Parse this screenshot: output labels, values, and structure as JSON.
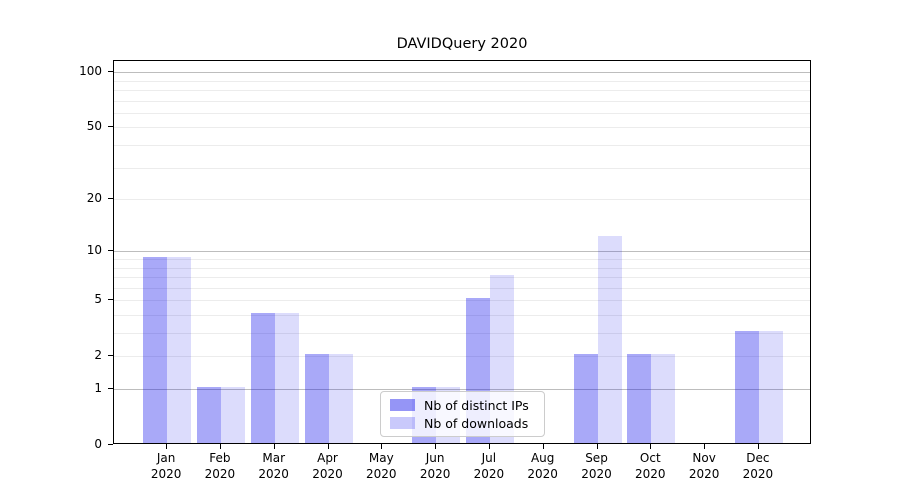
{
  "figure": {
    "background": "#ffffff"
  },
  "chart_data": {
    "type": "bar",
    "title": "DAVIDQuery 2020",
    "categories": [
      "Jan",
      "Feb",
      "Mar",
      "Apr",
      "May",
      "Jun",
      "Jul",
      "Aug",
      "Sep",
      "Oct",
      "Nov",
      "Dec"
    ],
    "category_sublabel": "2020",
    "series": [
      {
        "name": "Nb of distinct IPs",
        "color": "#0a0aeb",
        "alpha": 0.35,
        "perceived_hex": "#a9a9f8",
        "values": [
          9,
          1,
          4,
          2,
          0,
          1,
          5,
          0,
          2,
          2,
          0,
          3
        ]
      },
      {
        "name": "Nb of downloads",
        "color": "#0a0aeb",
        "alpha": 0.14,
        "perceived_hex": "#ddddfc",
        "values": [
          9,
          1,
          4,
          2,
          0,
          1,
          7,
          0,
          12,
          2,
          0,
          3
        ]
      }
    ],
    "xlabel": "",
    "ylabel": "",
    "yaxis": {
      "scale": "log1p",
      "min": 0,
      "max": 115,
      "labeled_ticks": [
        "0",
        "1",
        "2",
        "5",
        "10",
        "20",
        "50",
        "100"
      ],
      "labeled_tick_values": [
        0,
        1,
        2,
        5,
        10,
        20,
        50,
        100
      ],
      "major_gridline_values": [
        1,
        10,
        100
      ],
      "minor_gridline_values": [
        2,
        3,
        4,
        5,
        6,
        7,
        8,
        9,
        20,
        30,
        40,
        50,
        60,
        70,
        80,
        90
      ]
    },
    "grid": true,
    "legend": {
      "position": "lower center"
    }
  },
  "colors": {
    "major_grid": "#bdbdbd",
    "minor_grid": "#ececec",
    "spine": "#000000",
    "text": "#000000",
    "legend_border": "#cccccc"
  }
}
